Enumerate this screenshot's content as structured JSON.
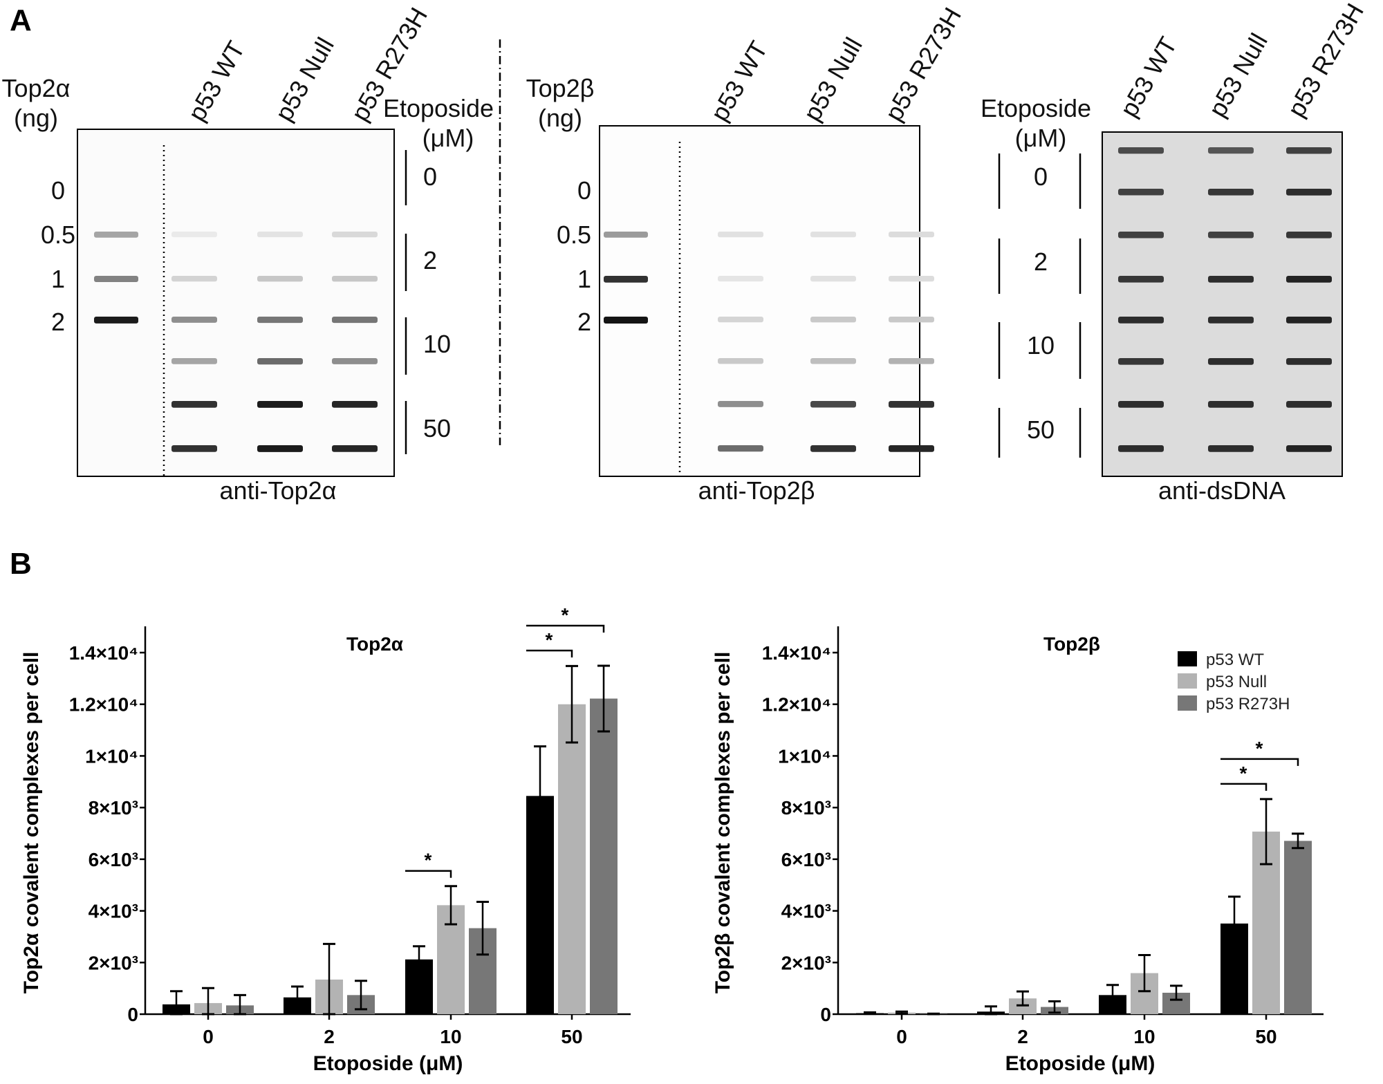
{
  "panel_labels": {
    "a": "A",
    "b": "B"
  },
  "blots": [
    {
      "std_title": [
        "Top2α",
        "(ng)"
      ],
      "std_rows": [
        "0",
        "0.5",
        "1",
        "2"
      ],
      "std_intensity": [
        0,
        0.35,
        0.5,
        0.95
      ],
      "lanes": [
        "p53 WT",
        "p53 Null",
        "p53 R273H"
      ],
      "intensity": [
        [
          0,
          0,
          0.05,
          0.15,
          0.45,
          0.35,
          0.85,
          0.85
        ],
        [
          0,
          0,
          0.08,
          0.2,
          0.55,
          0.6,
          0.95,
          0.95
        ],
        [
          0,
          0,
          0.12,
          0.2,
          0.55,
          0.45,
          0.9,
          0.9
        ]
      ],
      "antibody": "anti-Top2α"
    },
    {
      "std_title": [
        "Top2β",
        "(ng)"
      ],
      "std_rows": [
        "0",
        "0.5",
        "1",
        "2"
      ],
      "std_intensity": [
        0,
        0.4,
        0.85,
        0.98
      ],
      "lanes": [
        "p53 WT",
        "p53 Null",
        "p53 R273H"
      ],
      "intensity": [
        [
          0,
          0,
          0.1,
          0.08,
          0.15,
          0.2,
          0.45,
          0.6
        ],
        [
          0,
          0,
          0.1,
          0.1,
          0.2,
          0.25,
          0.75,
          0.85
        ],
        [
          0,
          0,
          0.12,
          0.12,
          0.2,
          0.3,
          0.85,
          0.9
        ]
      ],
      "antibody": "anti-Top2β"
    },
    {
      "lanes": [
        "p53 WT",
        "p53 Null",
        "p53 R273H"
      ],
      "intensity": [
        [
          0.7,
          0.75,
          0.75,
          0.8,
          0.85,
          0.8,
          0.85,
          0.85
        ],
        [
          0.65,
          0.8,
          0.75,
          0.85,
          0.85,
          0.85,
          0.85,
          0.85
        ],
        [
          0.75,
          0.85,
          0.8,
          0.9,
          0.9,
          0.85,
          0.85,
          0.9
        ]
      ],
      "antibody": "anti-dsDNA"
    }
  ],
  "etoposide_label": [
    "Etoposide",
    "(μM)"
  ],
  "etoposide_doses": [
    "0",
    "2",
    "10",
    "50"
  ],
  "chart_data": [
    {
      "type": "bar",
      "title": "Top2α",
      "xlabel": "Etoposide (μM)",
      "ylabel": "Top2α covalent complexes per cell",
      "categories": [
        "0",
        "2",
        "10",
        "50"
      ],
      "ylim": [
        0,
        15000
      ],
      "yticks": [
        0,
        2000,
        4000,
        6000,
        8000,
        10000,
        12000,
        14000
      ],
      "ytick_labels": [
        "0",
        "2×10³",
        "4×10³",
        "6×10³",
        "8×10³",
        "1×10⁴",
        "1.2×10⁴",
        "1.4×10⁴"
      ],
      "series": [
        {
          "name": "p53 WT",
          "color": "#000000",
          "values": [
            380,
            650,
            2120,
            8450
          ],
          "errors": [
            510,
            420,
            510,
            1920
          ]
        },
        {
          "name": "p53 Null",
          "color": "#b3b3b3",
          "values": [
            430,
            1340,
            4220,
            12000
          ],
          "errors": [
            580,
            1380,
            740,
            1480
          ]
        },
        {
          "name": "p53 R273H",
          "color": "#777777",
          "values": [
            340,
            740,
            3330,
            12220
          ],
          "errors": [
            400,
            550,
            1020,
            1270
          ]
        }
      ],
      "significance": [
        {
          "category": "10",
          "from": "p53 WT",
          "to": "p53 Null",
          "label": "*"
        },
        {
          "category": "50",
          "from": "p53 WT",
          "to": "p53 Null",
          "label": "*"
        },
        {
          "category": "50",
          "from": "p53 WT",
          "to": "p53 R273H",
          "label": "*"
        }
      ],
      "legend": false
    },
    {
      "type": "bar",
      "title": "Top2β",
      "xlabel": "Etoposide (μM)",
      "ylabel": "Top2β covalent complexes per cell",
      "categories": [
        "0",
        "2",
        "10",
        "50"
      ],
      "ylim": [
        0,
        15000
      ],
      "yticks": [
        0,
        2000,
        4000,
        6000,
        8000,
        10000,
        12000,
        14000
      ],
      "ytick_labels": [
        "0",
        "2×10³",
        "4×10³",
        "6×10³",
        "8×10³",
        "1×10⁴",
        "1.2×10⁴",
        "1.4×10⁴"
      ],
      "series": [
        {
          "name": "p53 WT",
          "color": "#000000",
          "values": [
            40,
            100,
            740,
            3510
          ],
          "errors": [
            30,
            200,
            390,
            1040
          ]
        },
        {
          "name": "p53 Null",
          "color": "#b3b3b3",
          "values": [
            60,
            610,
            1590,
            7070
          ],
          "errors": [
            40,
            270,
            700,
            1260
          ]
        },
        {
          "name": "p53 R273H",
          "color": "#777777",
          "values": [
            10,
            280,
            830,
            6710
          ],
          "errors": [
            10,
            220,
            270,
            280
          ]
        }
      ],
      "significance": [
        {
          "category": "50",
          "from": "p53 WT",
          "to": "p53 Null",
          "label": "*"
        },
        {
          "category": "50",
          "from": "p53 WT",
          "to": "p53 R273H",
          "label": "*"
        }
      ],
      "legend": true,
      "legend_position": "top-right"
    }
  ]
}
